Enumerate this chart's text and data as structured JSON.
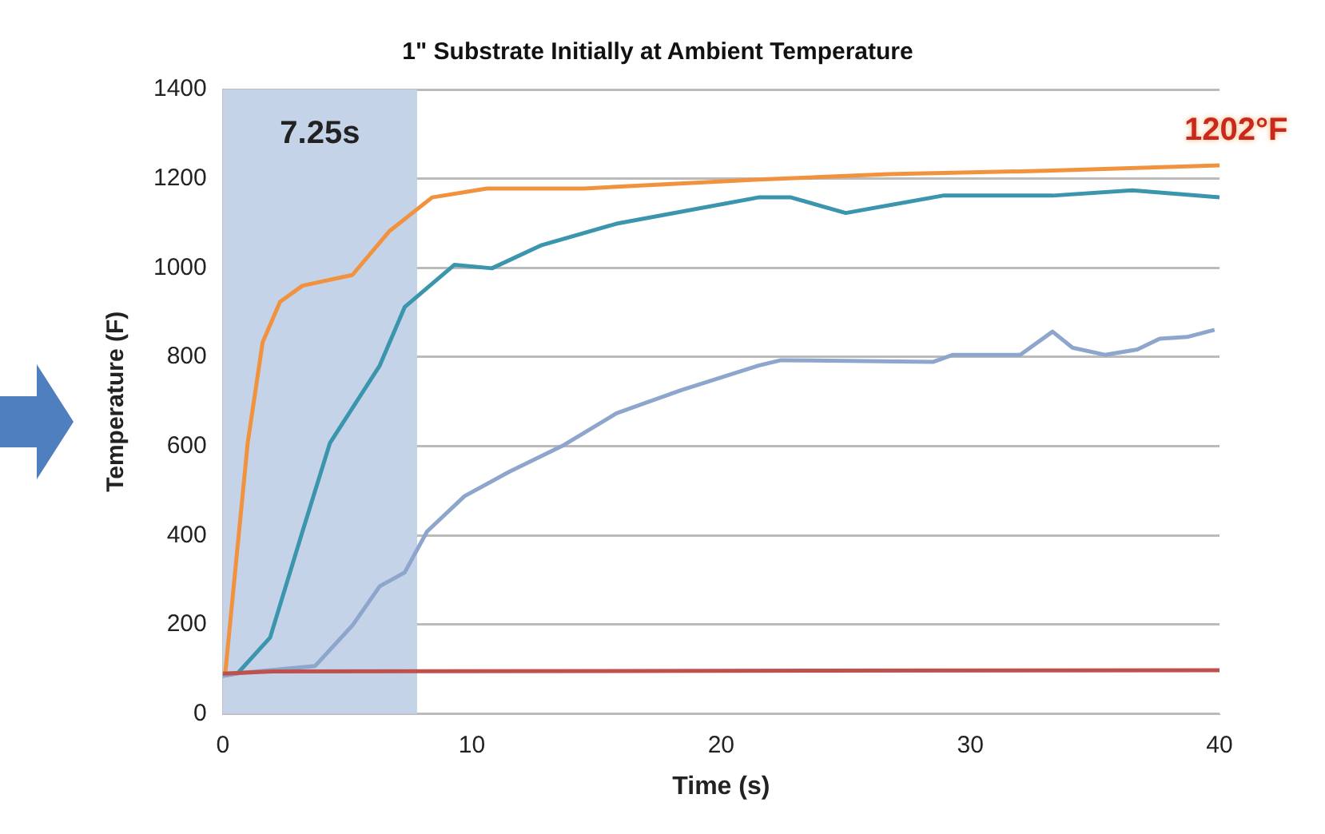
{
  "chart_data": {
    "type": "line",
    "title": "1\" Substrate Initially at Ambient Temperature",
    "xlabel": "Time (s)",
    "ylabel": "Temperature (F)",
    "xlim": [
      0,
      40
    ],
    "xticks": [
      0,
      10,
      20,
      30,
      40
    ],
    "ylim": [
      0,
      1400
    ],
    "yticks": [
      0,
      200,
      400,
      600,
      800,
      1000,
      1200,
      1400
    ],
    "grid": "y",
    "legend": false,
    "marker": "none",
    "line_style": "solid",
    "bands": [
      {
        "axis": "x",
        "from": 0,
        "to": 7.8,
        "label": "7.25s",
        "color": "#c5d3e8"
      }
    ],
    "annotations": [
      "1202°F"
    ],
    "series": [
      {
        "color": "#c0504d",
        "x": [
          0,
          2,
          40
        ],
        "values": [
          90,
          95,
          98
        ]
      },
      {
        "color": "#8ea5cc",
        "x": [
          0,
          0.6,
          3.7,
          5.2,
          6.3,
          7.3,
          8.2,
          9.7,
          11.5,
          13.7,
          15.8,
          18.4,
          21.5,
          22.4,
          28.5,
          29.3,
          32,
          33.3,
          34.1,
          35.4,
          36.7,
          37.6,
          38.7,
          39.8
        ],
        "values": [
          85,
          91,
          107,
          198,
          286,
          317,
          409,
          488,
          543,
          603,
          674,
          726,
          781,
          793,
          789,
          805,
          805,
          857,
          821,
          805,
          817,
          841,
          845,
          861
        ]
      },
      {
        "color": "#3a95ad",
        "x": [
          0,
          0.6,
          1.9,
          3.2,
          4.3,
          6.3,
          7.3,
          9.3,
          10.8,
          12.8,
          15.8,
          21.5,
          22.8,
          25,
          28.9,
          33.3,
          36.5,
          40
        ],
        "values": [
          85,
          91,
          171,
          409,
          607,
          781,
          912,
          1007,
          999,
          1051,
          1099,
          1158,
          1158,
          1123,
          1162,
          1162,
          1174,
          1158
        ]
      },
      {
        "color": "#f0923e",
        "x": [
          0,
          0.1,
          1,
          1.6,
          2.3,
          3.2,
          5.2,
          6.7,
          8.4,
          10.6,
          14.5,
          21.5,
          26.7,
          33.3,
          40
        ],
        "values": [
          85,
          91,
          607,
          833,
          924,
          960,
          984,
          1083,
          1158,
          1178,
          1178,
          1198,
          1210,
          1218,
          1230
        ]
      }
    ]
  }
}
